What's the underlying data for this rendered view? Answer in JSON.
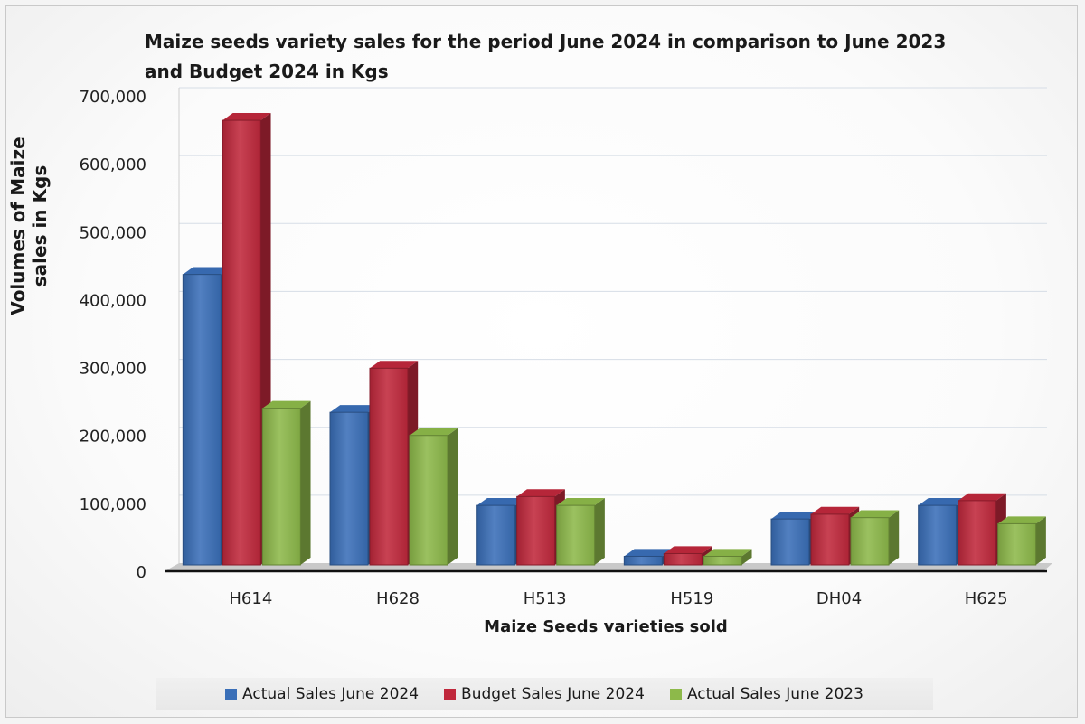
{
  "chart_data": {
    "type": "bar",
    "title": "Maize seeds variety sales for the period June 2024 in comparison to June 2023 and Budget 2024 in Kgs",
    "xlabel": "Maize Seeds varieties sold",
    "ylabel": "Volumes of Maize sales in Kgs",
    "ylim": [
      0,
      700000
    ],
    "yticks": [
      "0",
      "100,000",
      "200,000",
      "300,000",
      "400,000",
      "500,000",
      "600,000",
      "700,000"
    ],
    "categories": [
      "H614",
      "H628",
      "H513",
      "H519",
      "DH04",
      "H625"
    ],
    "series": [
      {
        "name": "Actual Sales June 2024",
        "color": "#3a6fb8",
        "values": [
          425000,
          222000,
          85000,
          10000,
          65000,
          85000
        ]
      },
      {
        "name": "Budget Sales June 2024",
        "color": "#c0283c",
        "values": [
          652000,
          287000,
          98000,
          14000,
          72000,
          92000
        ]
      },
      {
        "name": "Actual Sales June 2023",
        "color": "#8db94a",
        "values": [
          228000,
          188000,
          85000,
          10000,
          67000,
          58000
        ]
      }
    ],
    "grid": true,
    "legend_position": "bottom"
  }
}
